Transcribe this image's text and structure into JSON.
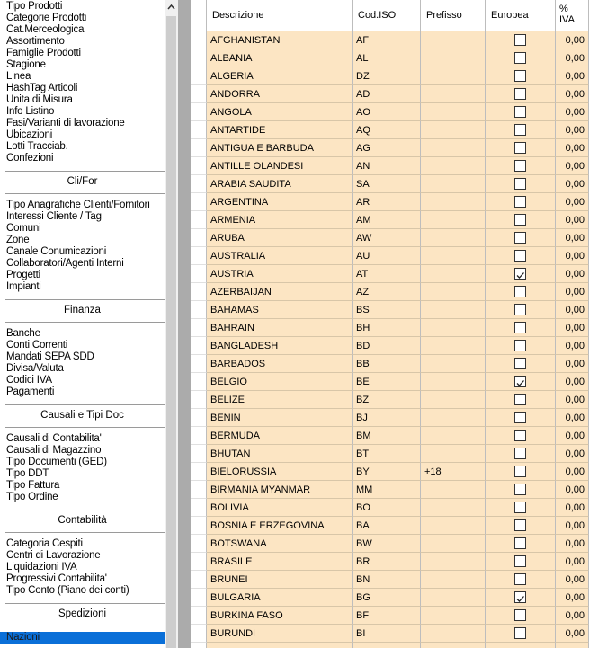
{
  "menu": {
    "items": [
      "Tipo Prodotti",
      "Categorie Prodotti",
      "Cat.Merceologica",
      "Assortimento",
      "Famiglie Prodotti",
      "Stagione",
      "Linea",
      "HashTag Articoli",
      "Unita di Misura",
      "Info Listino",
      "Fasi/Varianti di lavorazione",
      "Ubicazioni",
      "Lotti Tracciab.",
      "Confezioni"
    ],
    "sections": [
      {
        "title": "Cli/For",
        "items": [
          "Tipo Anagrafiche Clienti/Fornitori",
          "Interessi Cliente / Tag",
          "Comuni",
          "Zone",
          "Canale Conumicazioni",
          "Collaboratori/Agenti Interni",
          "Progetti",
          "Impianti"
        ]
      },
      {
        "title": "Finanza",
        "items": [
          "Banche",
          "Conti Correnti",
          "Mandati SEPA SDD",
          "Divisa/Valuta",
          "Codici IVA",
          "Pagamenti"
        ]
      },
      {
        "title": "Causali e Tipi Doc",
        "items": [
          "Causali di Contabilita'",
          "Causali di Magazzino",
          "Tipo Documenti (GED)",
          "Tipo DDT",
          "Tipo Fattura",
          "Tipo Ordine"
        ]
      },
      {
        "title": "Contabilità",
        "items": [
          "Categoria Cespiti",
          "Centri di Lavorazione",
          "Liquidazioni IVA",
          "Progressivi Contabilita'",
          "Tipo Conto (Piano dei conti)"
        ]
      },
      {
        "title": "Spedizioni",
        "items": [
          "Nazioni"
        ]
      }
    ],
    "selected": "Nazioni"
  },
  "table": {
    "columns": [
      "Descrizione",
      "Cod.ISO",
      "Prefisso",
      "Europea",
      "% IVA"
    ],
    "rows": [
      [
        "AFGHANISTAN",
        "AF",
        null,
        false,
        "0,00"
      ],
      [
        "ALBANIA",
        "AL",
        null,
        false,
        "0,00"
      ],
      [
        "ALGERIA",
        "DZ",
        null,
        false,
        "0,00"
      ],
      [
        "ANDORRA",
        "AD",
        null,
        false,
        "0,00"
      ],
      [
        "ANGOLA",
        "AO",
        null,
        false,
        "0,00"
      ],
      [
        "ANTARTIDE",
        "AQ",
        null,
        false,
        "0,00"
      ],
      [
        "ANTIGUA E BARBUDA",
        "AG",
        null,
        false,
        "0,00"
      ],
      [
        "ANTILLE OLANDESI",
        "AN",
        null,
        false,
        "0,00"
      ],
      [
        "ARABIA SAUDITA",
        "SA",
        null,
        false,
        "0,00"
      ],
      [
        "ARGENTINA",
        "AR",
        null,
        false,
        "0,00"
      ],
      [
        "ARMENIA",
        "AM",
        null,
        false,
        "0,00"
      ],
      [
        "ARUBA",
        "AW",
        null,
        false,
        "0,00"
      ],
      [
        "AUSTRALIA",
        "AU",
        null,
        false,
        "0,00"
      ],
      [
        "AUSTRIA",
        "AT",
        null,
        true,
        "0,00"
      ],
      [
        "AZERBAIJAN",
        "AZ",
        null,
        false,
        "0,00"
      ],
      [
        "BAHAMAS",
        "BS",
        null,
        false,
        "0,00"
      ],
      [
        "BAHRAIN",
        "BH",
        null,
        false,
        "0,00"
      ],
      [
        "BANGLADESH",
        "BD",
        null,
        false,
        "0,00"
      ],
      [
        "BARBADOS",
        "BB",
        null,
        false,
        "0,00"
      ],
      [
        "BELGIO",
        "BE",
        null,
        true,
        "0,00"
      ],
      [
        "BELIZE",
        "BZ",
        null,
        false,
        "0,00"
      ],
      [
        "BENIN",
        "BJ",
        null,
        false,
        "0,00"
      ],
      [
        "BERMUDA",
        "BM",
        null,
        false,
        "0,00"
      ],
      [
        "BHUTAN",
        "BT",
        null,
        false,
        "0,00"
      ],
      [
        "BIELORUSSIA",
        "BY",
        "+18",
        false,
        "0,00"
      ],
      [
        "BIRMANIA MYANMAR",
        "MM",
        null,
        false,
        "0,00"
      ],
      [
        "BOLIVIA",
        "BO",
        null,
        false,
        "0,00"
      ],
      [
        "BOSNIA E ERZEGOVINA",
        "BA",
        null,
        false,
        "0,00"
      ],
      [
        "BOTSWANA",
        "BW",
        null,
        false,
        "0,00"
      ],
      [
        "BRASILE",
        "BR",
        null,
        false,
        "0,00"
      ],
      [
        "BRUNEI",
        "BN",
        null,
        false,
        "0,00"
      ],
      [
        "BULGARIA",
        "BG",
        null,
        true,
        "0,00"
      ],
      [
        "BURKINA FASO",
        "BF",
        null,
        false,
        "0,00"
      ],
      [
        "BURUNDI",
        "BI",
        null,
        false,
        "0,00"
      ]
    ]
  }
}
